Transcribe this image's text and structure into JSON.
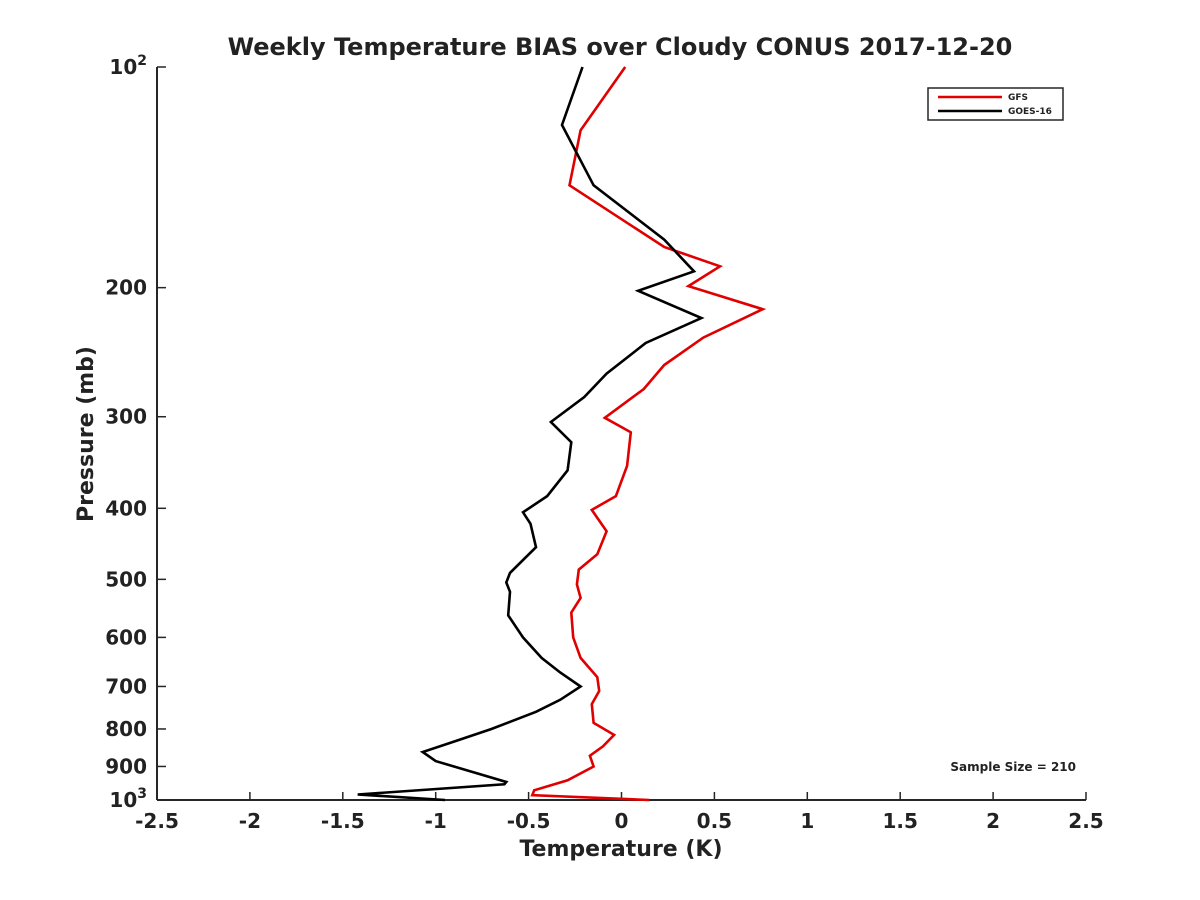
{
  "chart_data": {
    "type": "line",
    "title": "Weekly Temperature BIAS over Cloudy CONUS 2017-12-20",
    "xlabel": "Temperature (K)",
    "ylabel": "Pressure (mb)",
    "xlim": [
      -2.5,
      2.5
    ],
    "ylim": [
      1000,
      100
    ],
    "y_scale": "log",
    "y_reversed": true,
    "x_ticks": [
      -2.5,
      -2,
      -1.5,
      -1,
      -0.5,
      0,
      0.5,
      1,
      1.5,
      2,
      2.5
    ],
    "x_tick_labels": [
      "-2.5",
      "-2",
      "-1.5",
      "-1",
      "-0.5",
      "0",
      "0.5",
      "1",
      "1.5",
      "2",
      "2.5"
    ],
    "y_ticks": [
      100,
      200,
      300,
      400,
      500,
      600,
      700,
      800,
      900,
      1000
    ],
    "y_tick_labels": [
      {
        "base": "10",
        "exp": "2"
      },
      {
        "base": "200",
        "exp": ""
      },
      {
        "base": "300",
        "exp": ""
      },
      {
        "base": "400",
        "exp": ""
      },
      {
        "base": "500",
        "exp": ""
      },
      {
        "base": "600",
        "exp": ""
      },
      {
        "base": "700",
        "exp": ""
      },
      {
        "base": "800",
        "exp": ""
      },
      {
        "base": "900",
        "exp": ""
      },
      {
        "base": "10",
        "exp": "3"
      }
    ],
    "grid": false,
    "legend_position": "top-right",
    "series": [
      {
        "name": "GFS",
        "color": "#e00000",
        "points": [
          [
            0.02,
            100
          ],
          [
            -0.22,
            122
          ],
          [
            -0.28,
            145
          ],
          [
            0.23,
            176
          ],
          [
            0.53,
            187
          ],
          [
            0.36,
            199
          ],
          [
            0.76,
            214
          ],
          [
            0.44,
            234
          ],
          [
            0.23,
            255
          ],
          [
            0.12,
            275
          ],
          [
            -0.09,
            301
          ],
          [
            0.05,
            315
          ],
          [
            0.03,
            350
          ],
          [
            -0.03,
            385
          ],
          [
            -0.16,
            402
          ],
          [
            -0.08,
            430
          ],
          [
            -0.13,
            462
          ],
          [
            -0.23,
            485
          ],
          [
            -0.24,
            508
          ],
          [
            -0.22,
            530
          ],
          [
            -0.27,
            555
          ],
          [
            -0.26,
            600
          ],
          [
            -0.22,
            640
          ],
          [
            -0.13,
            680
          ],
          [
            -0.12,
            710
          ],
          [
            -0.16,
            740
          ],
          [
            -0.15,
            785
          ],
          [
            -0.04,
            815
          ],
          [
            -0.1,
            845
          ],
          [
            -0.17,
            870
          ],
          [
            -0.15,
            900
          ],
          [
            -0.29,
            940
          ],
          [
            -0.47,
            970
          ],
          [
            -0.48,
            985
          ],
          [
            0.15,
            1000
          ]
        ]
      },
      {
        "name": "GOES-16",
        "color": "#000000",
        "points": [
          [
            -0.21,
            100
          ],
          [
            -0.32,
            120
          ],
          [
            -0.15,
            145
          ],
          [
            0.23,
            172
          ],
          [
            0.39,
            190
          ],
          [
            0.09,
            202
          ],
          [
            0.43,
            220
          ],
          [
            0.13,
            238
          ],
          [
            -0.08,
            262
          ],
          [
            -0.2,
            282
          ],
          [
            -0.38,
            305
          ],
          [
            -0.27,
            325
          ],
          [
            -0.29,
            355
          ],
          [
            -0.4,
            385
          ],
          [
            -0.53,
            405
          ],
          [
            -0.49,
            420
          ],
          [
            -0.46,
            452
          ],
          [
            -0.6,
            490
          ],
          [
            -0.62,
            505
          ],
          [
            -0.6,
            520
          ],
          [
            -0.61,
            560
          ],
          [
            -0.53,
            600
          ],
          [
            -0.43,
            640
          ],
          [
            -0.33,
            670
          ],
          [
            -0.22,
            700
          ],
          [
            -0.33,
            730
          ],
          [
            -0.46,
            758
          ],
          [
            -0.7,
            800
          ],
          [
            -0.9,
            832
          ],
          [
            -1.07,
            860
          ],
          [
            -1.0,
            885
          ],
          [
            -0.62,
            945
          ],
          [
            -0.63,
            952
          ],
          [
            -1.42,
            983
          ],
          [
            -0.95,
            1000
          ]
        ]
      }
    ],
    "annotation": "Sample Size = 210"
  }
}
